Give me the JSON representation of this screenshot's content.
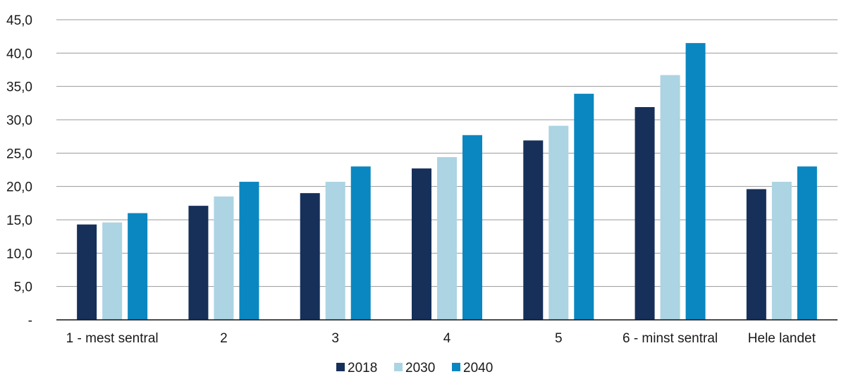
{
  "chart_data": {
    "type": "bar",
    "title": "",
    "xlabel": "",
    "ylabel": "",
    "categories": [
      "1 - mest sentral",
      "2",
      "3",
      "4",
      "5",
      "6 - minst sentral",
      "Hele landet"
    ],
    "series": [
      {
        "name": "2018",
        "color": "#16305a",
        "values": [
          14.3,
          17.1,
          19.0,
          22.7,
          26.9,
          31.9,
          19.6
        ]
      },
      {
        "name": "2030",
        "color": "#acd4e3",
        "values": [
          14.6,
          18.5,
          20.7,
          24.4,
          29.1,
          36.7,
          20.7
        ]
      },
      {
        "name": "2040",
        "color": "#0a87c0",
        "values": [
          16.0,
          20.7,
          23.0,
          27.7,
          33.9,
          41.5,
          23.0
        ]
      }
    ],
    "ylim": [
      0,
      45
    ],
    "yticks": [
      0,
      5,
      10,
      15,
      20,
      25,
      30,
      35,
      40,
      45
    ],
    "ytick_labels": [
      "-",
      "5,0",
      "10,0",
      "15,0",
      "20,0",
      "25,0",
      "30,0",
      "35,0",
      "40,0",
      "45,0"
    ],
    "grid": true,
    "legend_position": "bottom-center"
  }
}
